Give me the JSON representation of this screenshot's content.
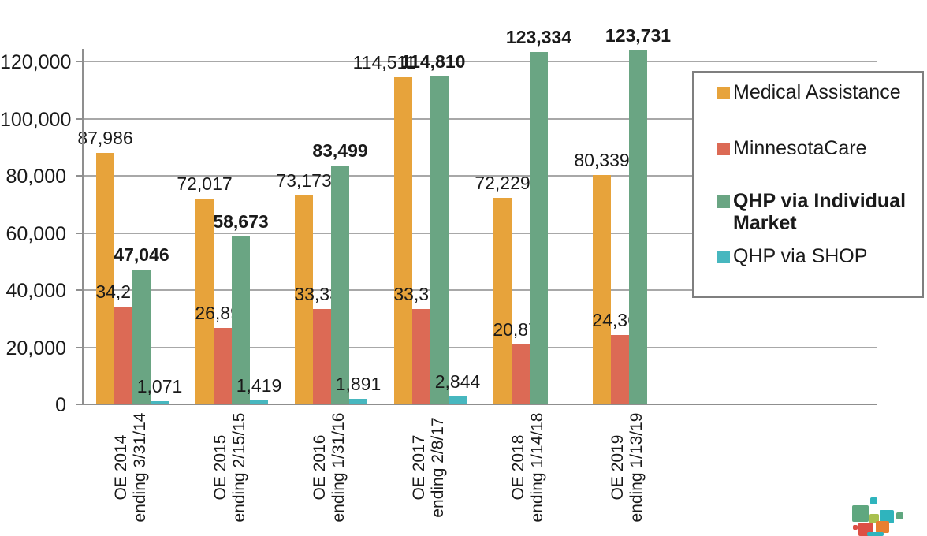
{
  "chart_data": {
    "type": "bar",
    "title": "",
    "xlabel": "",
    "ylabel": "",
    "categories": [
      {
        "line1": "OE 2014",
        "line2": "ending 3/31/14"
      },
      {
        "line1": "OE 2015",
        "line2": "ending 2/15/15"
      },
      {
        "line1": "OE 2016",
        "line2": "ending 1/31/16"
      },
      {
        "line1": "OE 2017",
        "line2": "ending 2/8/17"
      },
      {
        "line1": "OE 2018",
        "line2": "ending 1/14/18"
      },
      {
        "line1": "OE 2019",
        "line2": "ending 1/13/19"
      }
    ],
    "series": [
      {
        "name": "Medical Assistance",
        "color": "#E7A33B",
        "bold_labels": false,
        "values": [
          87986,
          72017,
          73173,
          114511,
          72229,
          80339
        ]
      },
      {
        "name": "MinnesotaCare",
        "color": "#DC6A55",
        "bold_labels": false,
        "values": [
          34219,
          26891,
          33333,
          33369,
          20873,
          24368
        ]
      },
      {
        "name": "QHP via Individual Market",
        "color": "#6AA583",
        "bold_labels": true,
        "values": [
          47046,
          58673,
          83499,
          114810,
          123334,
          123731
        ]
      },
      {
        "name": "QHP via SHOP",
        "color": "#47B7BF",
        "bold_labels": false,
        "values": [
          1071,
          1419,
          1891,
          2844,
          null,
          null
        ]
      }
    ],
    "y_axis": {
      "ticks": [
        0,
        20000,
        40000,
        60000,
        80000,
        100000,
        120000
      ],
      "min": 0,
      "max": 120000
    },
    "grid": true,
    "legend_position": "right"
  },
  "colors": {
    "background": "#ffffff",
    "grid": "#a8a8a8",
    "axis": "#8f8f8f",
    "text": "#1a1a1a",
    "legend_border": "#7f7f7f"
  },
  "logo": {
    "name": "mnsure-logo-mark",
    "palette": {
      "green": "#5fa77f",
      "teal": "#2fb4bd",
      "orange": "#e87f2f",
      "red": "#dd4f44",
      "lime": "#a9c04f"
    }
  }
}
